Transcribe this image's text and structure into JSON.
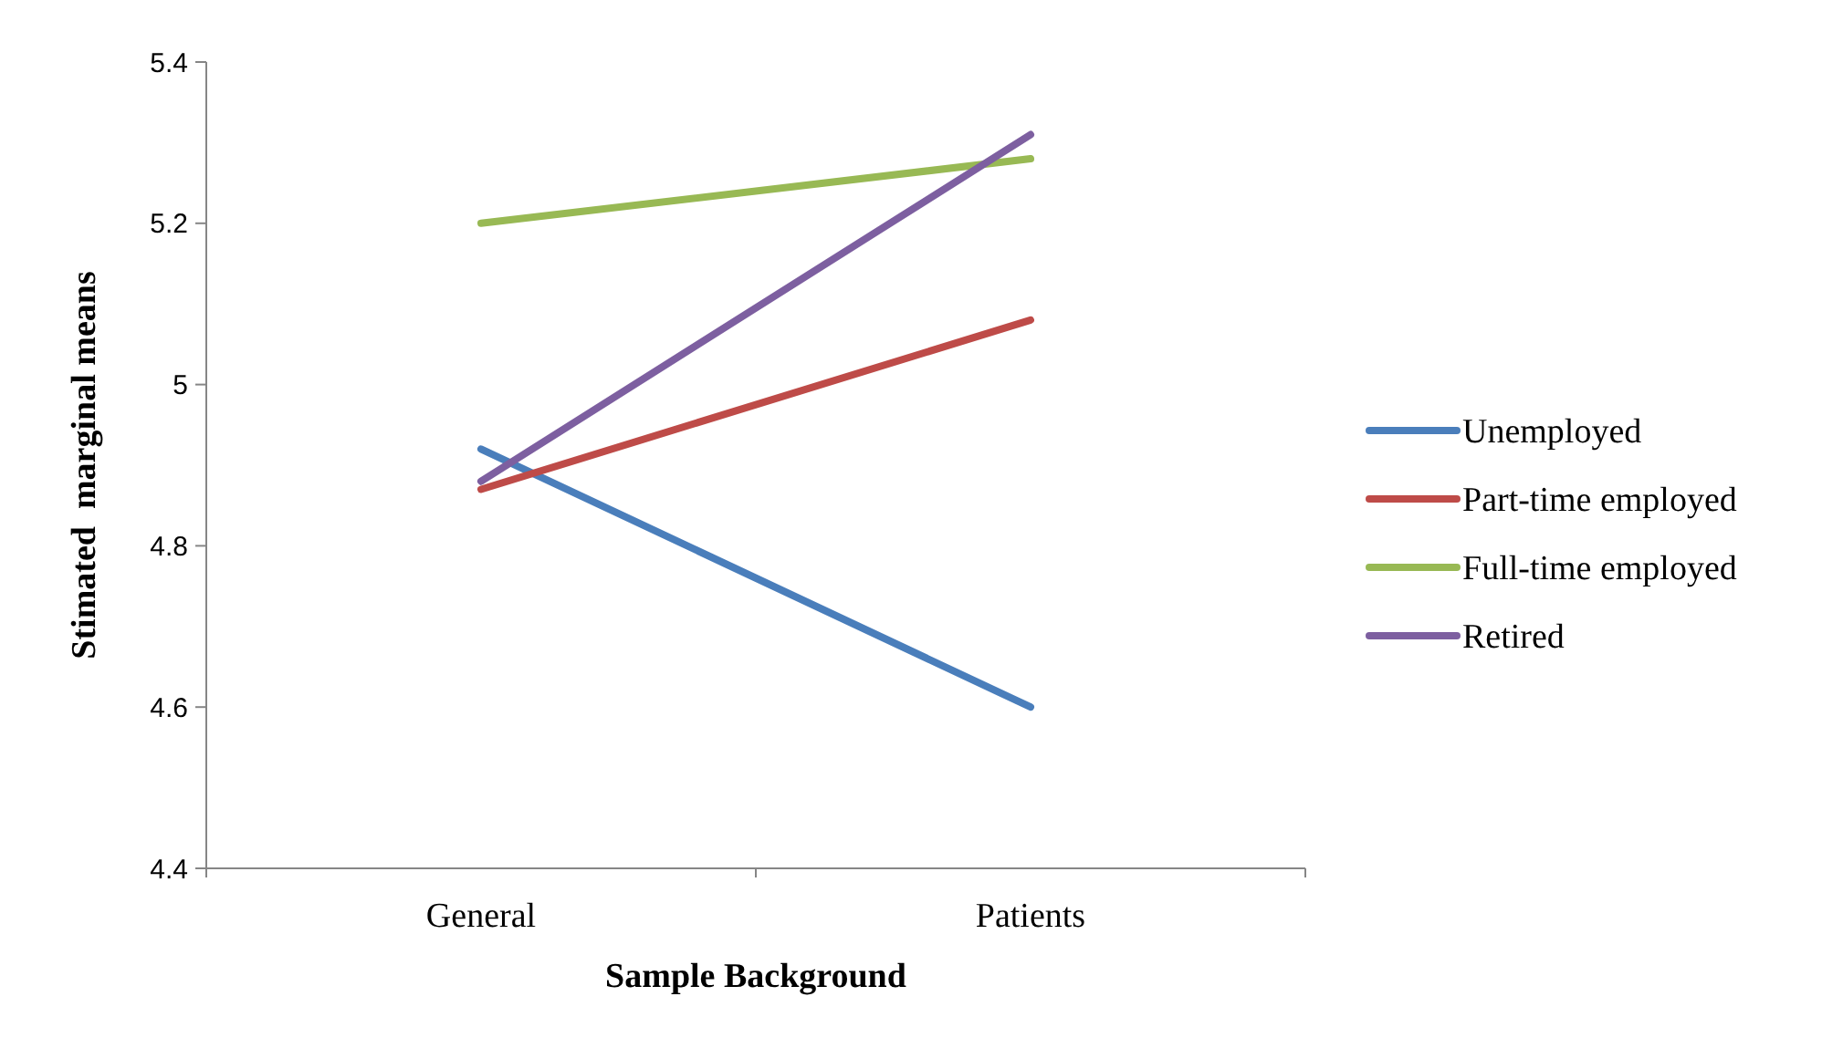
{
  "chart_data": {
    "type": "line",
    "xlabel": "Sample Background",
    "ylabel": "Stimated  marginal means",
    "categories": [
      "General",
      "Patients"
    ],
    "series": [
      {
        "name": "Unemployed",
        "color": "#4a7ebb",
        "values": [
          4.92,
          4.6
        ]
      },
      {
        "name": "Part-time employed",
        "color": "#be4b48",
        "values": [
          4.87,
          5.08
        ]
      },
      {
        "name": "Full-time employed",
        "color": "#98b954",
        "values": [
          5.2,
          5.28
        ]
      },
      {
        "name": "Retired",
        "color": "#7d5fa0",
        "values": [
          4.88,
          5.31
        ]
      }
    ],
    "ylim": [
      4.4,
      5.4
    ],
    "yticks": [
      4.4,
      4.6,
      4.8,
      {
        "value": 5,
        "label": "5"
      },
      5.2,
      5.4
    ],
    "grid": false,
    "legend": "right",
    "marker": "none",
    "line_style": "solid"
  }
}
